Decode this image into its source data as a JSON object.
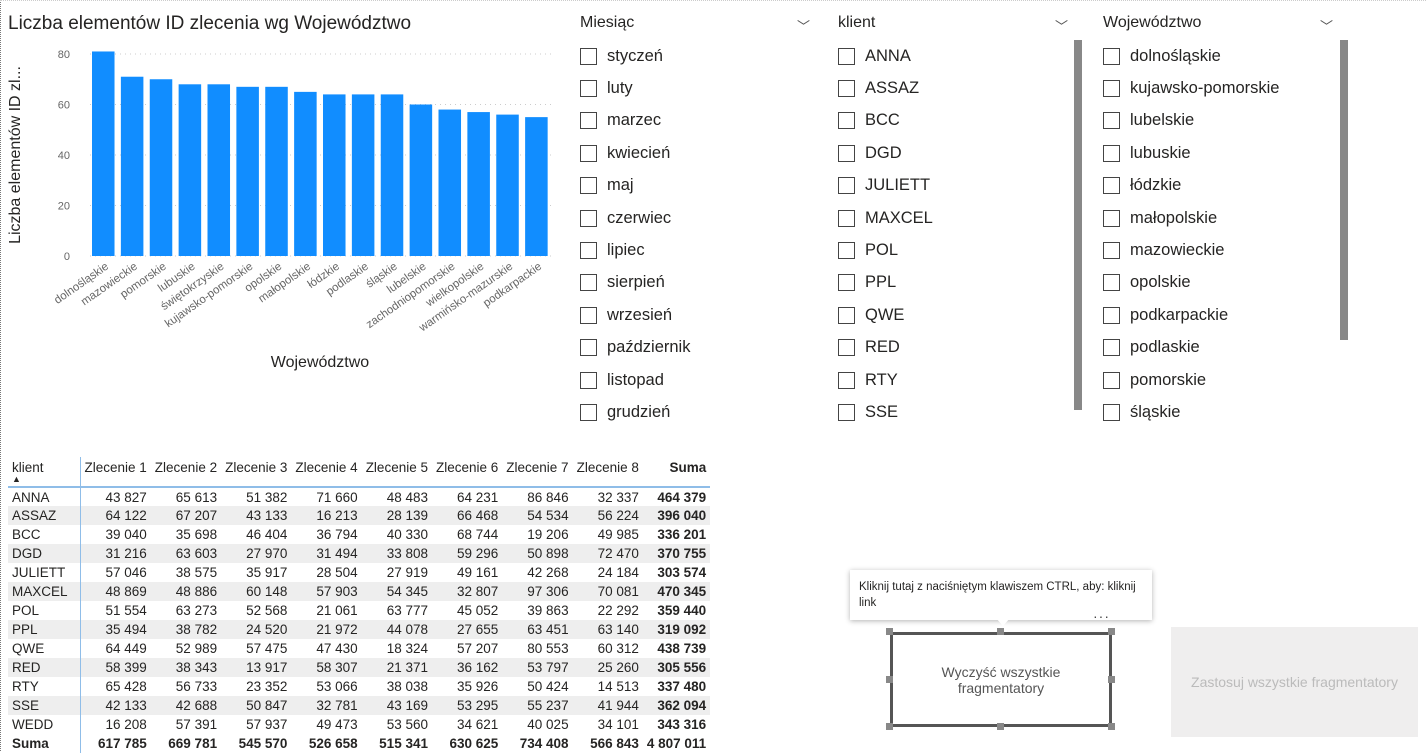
{
  "chart_data": {
    "type": "bar",
    "title": "Liczba elementów ID zlecenia wg Województwo",
    "xlabel": "Województwo",
    "ylabel": "Liczba elementów ID zl...",
    "ylim": [
      0,
      80
    ],
    "yticks": [
      "0",
      "20",
      "40",
      "60",
      "80"
    ],
    "color": "#118DFF",
    "categories": [
      "dolnośląskie",
      "mazowieckie",
      "pomorskie",
      "lubuskie",
      "świętokrzyskie",
      "kujawsko-pomorskie",
      "opolskie",
      "małopolskie",
      "łódzkie",
      "podlaskie",
      "śląskie",
      "lubelskie",
      "zachodniopomorskie",
      "wielkopolskie",
      "warmińsko-mazurskie",
      "podkarpackie"
    ],
    "values": [
      81,
      71,
      70,
      68,
      68,
      67,
      67,
      65,
      64,
      64,
      64,
      60,
      58,
      57,
      56,
      55
    ]
  },
  "slicers": [
    {
      "title": "Miesiąc",
      "items": [
        "styczeń",
        "luty",
        "marzec",
        "kwiecień",
        "maj",
        "czerwiec",
        "lipiec",
        "sierpień",
        "wrzesień",
        "październik",
        "listopad",
        "grudzień"
      ]
    },
    {
      "title": "klient",
      "items": [
        "ANNA",
        "ASSAZ",
        "BCC",
        "DGD",
        "JULIETT",
        "MAXCEL",
        "POL",
        "PPL",
        "QWE",
        "RED",
        "RTY",
        "SSE"
      ]
    },
    {
      "title": "Województwo",
      "items": [
        "dolnośląskie",
        "kujawsko-pomorskie",
        "lubelskie",
        "lubuskie",
        "łódzkie",
        "małopolskie",
        "mazowieckie",
        "opolskie",
        "podkarpackie",
        "podlaskie",
        "pomorskie",
        "śląskie"
      ]
    }
  ],
  "table": {
    "headers": [
      "klient",
      "Zlecenie 1",
      "Zlecenie 2",
      "Zlecenie 3",
      "Zlecenie 4",
      "Zlecenie 5",
      "Zlecenie 6",
      "Zlecenie 7",
      "Zlecenie 8",
      "Suma"
    ],
    "sort_icon": "▲",
    "rows": [
      [
        "ANNA",
        "43 827",
        "65 613",
        "51 382",
        "71 660",
        "48 483",
        "64 231",
        "86 846",
        "32 337",
        "464 379"
      ],
      [
        "ASSAZ",
        "64 122",
        "67 207",
        "43 133",
        "16 213",
        "28 139",
        "66 468",
        "54 534",
        "56 224",
        "396 040"
      ],
      [
        "BCC",
        "39 040",
        "35 698",
        "46 404",
        "36 794",
        "40 330",
        "68 744",
        "19 206",
        "49 985",
        "336 201"
      ],
      [
        "DGD",
        "31 216",
        "63 603",
        "27 970",
        "31 494",
        "33 808",
        "59 296",
        "50 898",
        "72 470",
        "370 755"
      ],
      [
        "JULIETT",
        "57 046",
        "38 575",
        "35 917",
        "28 504",
        "27 919",
        "49 161",
        "42 268",
        "24 184",
        "303 574"
      ],
      [
        "MAXCEL",
        "48 869",
        "48 886",
        "60 148",
        "57 903",
        "54 345",
        "32 807",
        "97 306",
        "70 081",
        "470 345"
      ],
      [
        "POL",
        "51 554",
        "63 273",
        "52 568",
        "21 061",
        "63 777",
        "45 052",
        "39 863",
        "22 292",
        "359 440"
      ],
      [
        "PPL",
        "35 494",
        "38 782",
        "24 520",
        "21 972",
        "44 078",
        "27 655",
        "63 451",
        "63 140",
        "319 092"
      ],
      [
        "QWE",
        "64 449",
        "52 989",
        "57 475",
        "47 430",
        "18 324",
        "57 207",
        "80 553",
        "60 312",
        "438 739"
      ],
      [
        "RED",
        "58 399",
        "38 343",
        "13 917",
        "58 307",
        "21 371",
        "36 162",
        "53 797",
        "25 260",
        "305 556"
      ],
      [
        "RTY",
        "65 428",
        "56 733",
        "23 352",
        "53 066",
        "38 038",
        "35 926",
        "50 424",
        "14 513",
        "337 480"
      ],
      [
        "SSE",
        "42 133",
        "42 688",
        "50 847",
        "32 781",
        "43 169",
        "53 295",
        "55 237",
        "41 944",
        "362 094"
      ],
      [
        "WEDD",
        "16 208",
        "57 391",
        "57 937",
        "49 473",
        "53 560",
        "34 621",
        "40 025",
        "34 101",
        "343 316"
      ]
    ],
    "total": [
      "Suma",
      "617 785",
      "669 781",
      "545 570",
      "526 658",
      "515 341",
      "630 625",
      "734 408",
      "566 843",
      "4 807 011"
    ]
  },
  "tooltip": "Kliknij tutaj z naciśniętym klawiszem CTRL, aby: kliknij link",
  "buttons": {
    "clear": "Wyczyść wszystkie fragmentatory",
    "apply": "Zastosuj wszystkie fragmentatory",
    "more": "···"
  },
  "icons": {
    "chevron": "﹀"
  }
}
